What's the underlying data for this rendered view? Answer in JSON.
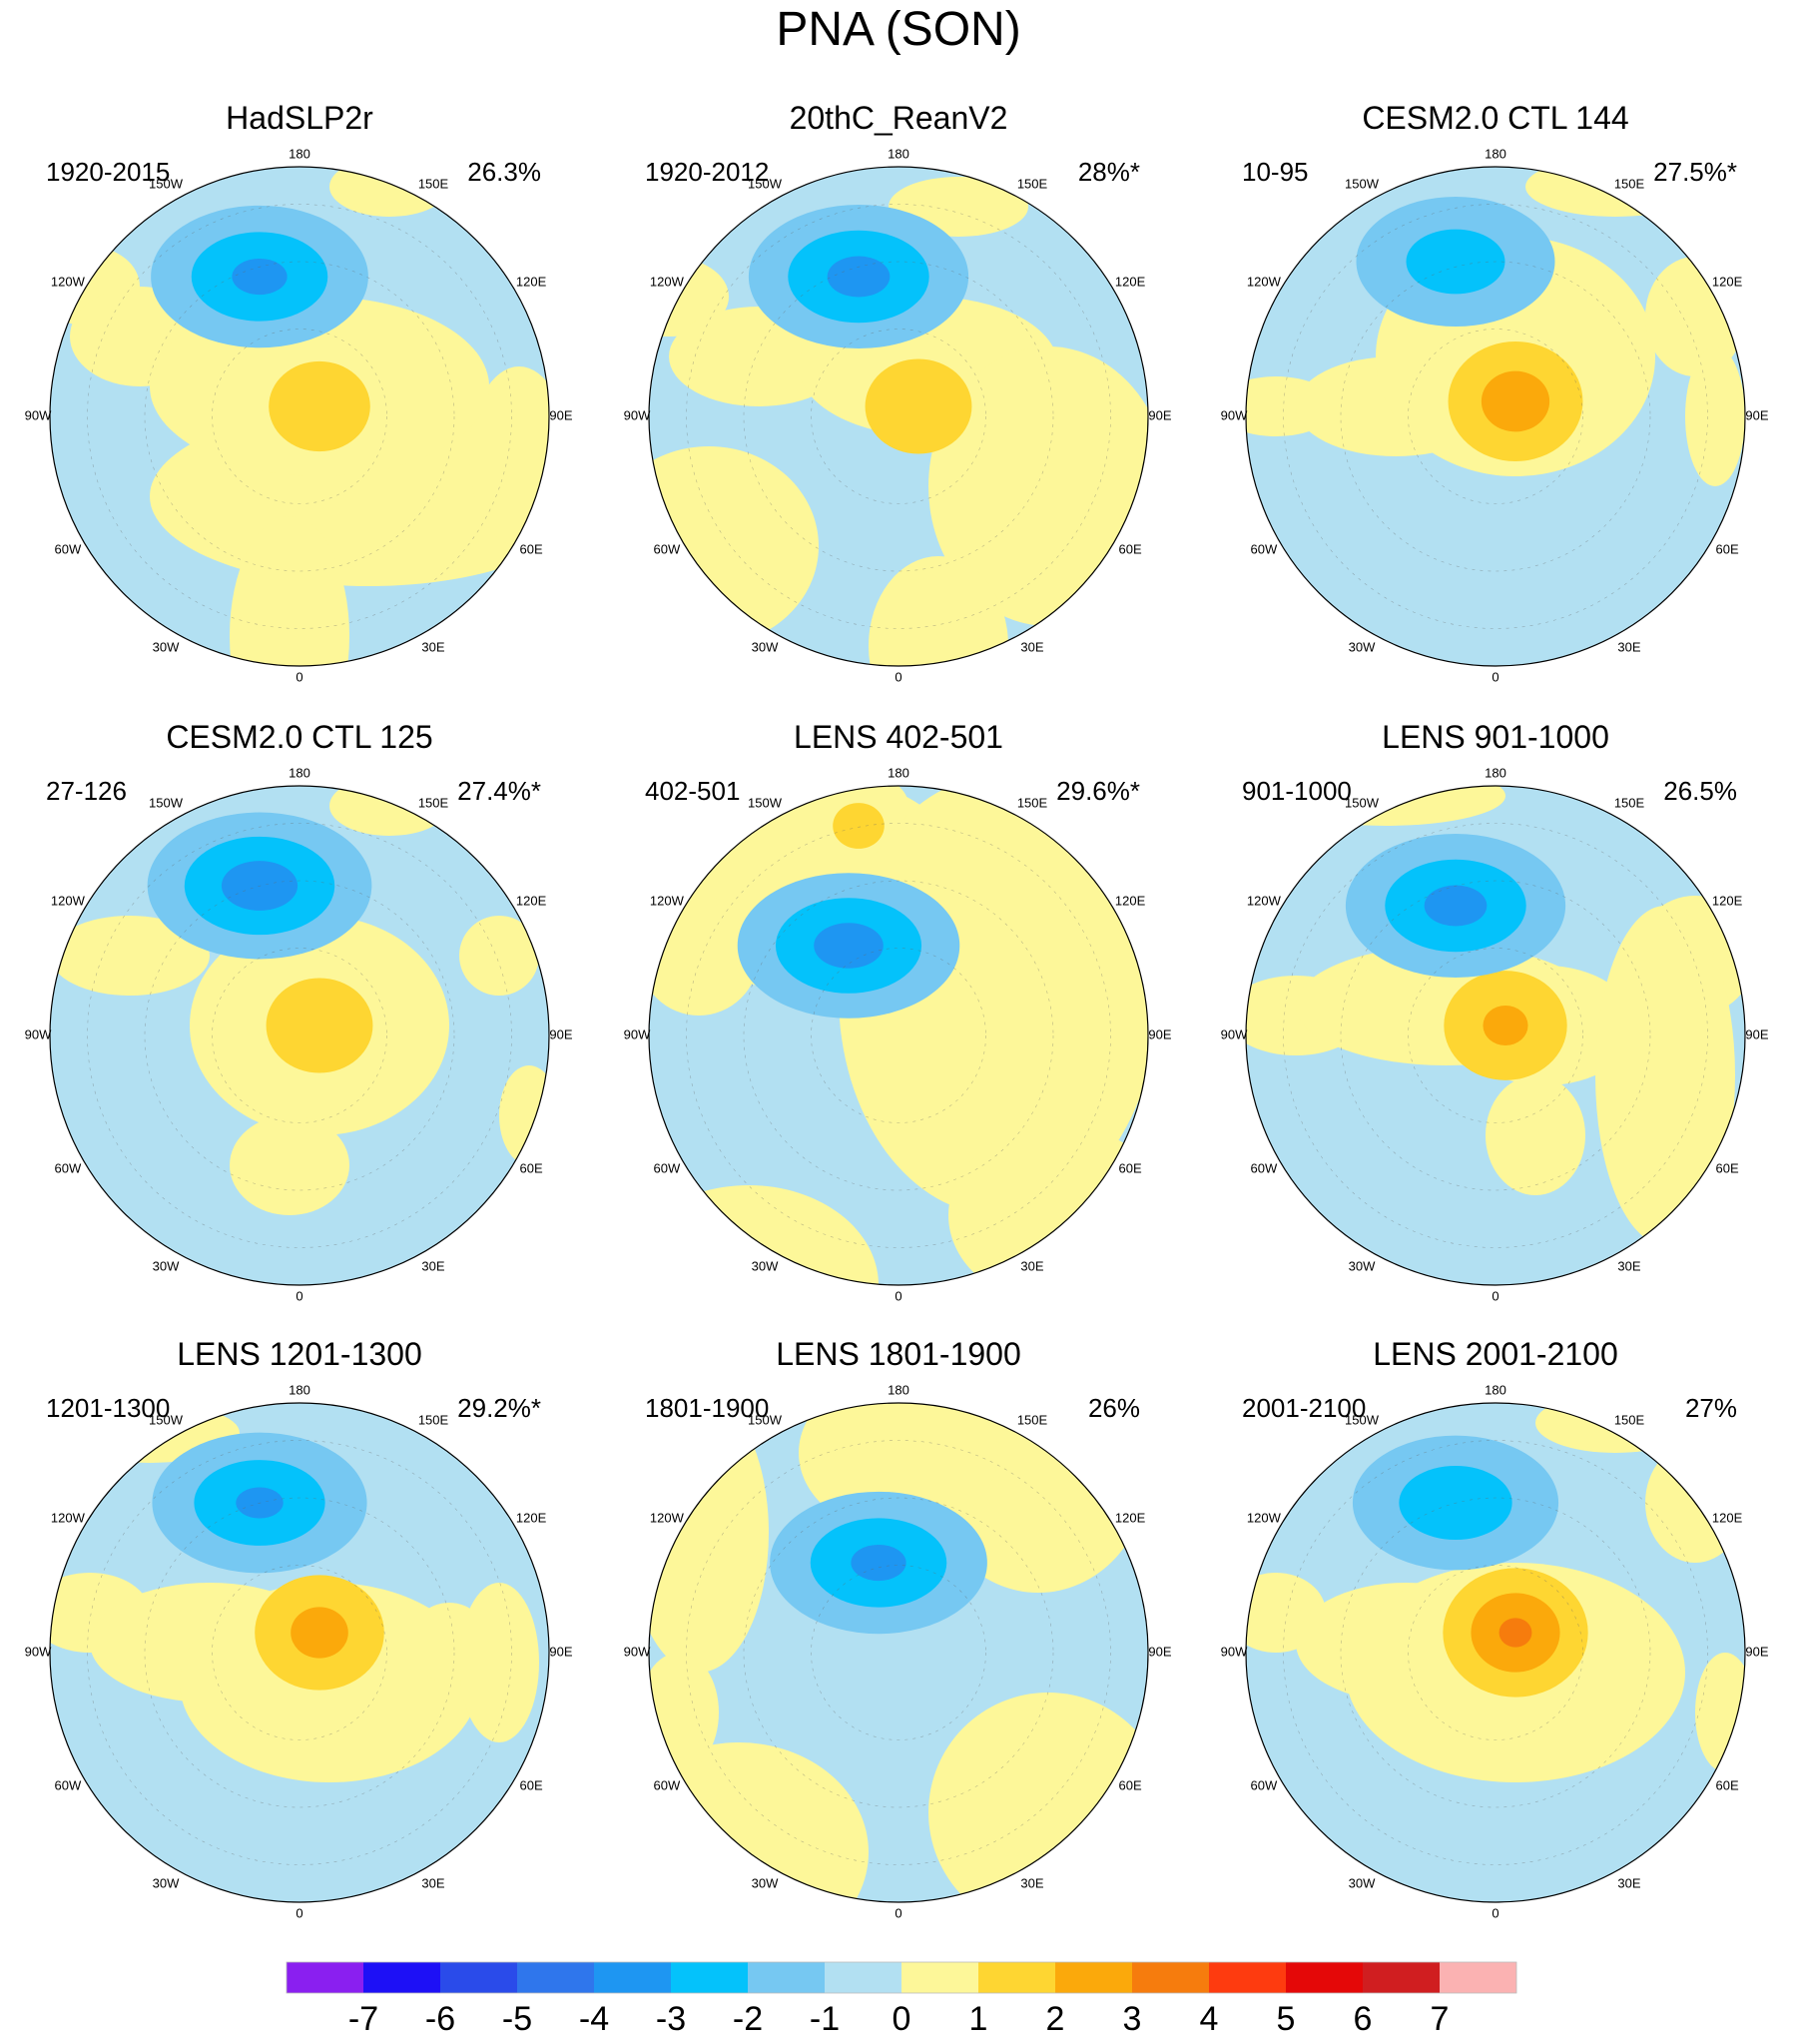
{
  "figure": {
    "title": "PNA (SON)"
  },
  "longitude_labels": [
    "180",
    "150E",
    "120E",
    "90E",
    "60E",
    "30E",
    "0",
    "30W",
    "60W",
    "90W",
    "120W",
    "150W"
  ],
  "panels": [
    {
      "title": "HadSLP2r",
      "period": "1920-2015",
      "variance": "26.3%",
      "low_center_mm": 4,
      "high_center_mm": 2,
      "low_max": -3.2,
      "high_max": 1.8
    },
    {
      "title": "20thC_ReanV2",
      "period": "1920-2012",
      "variance": "28%*",
      "low_center_mm": 3,
      "high_center_mm": 2,
      "low_max": -3.3,
      "high_max": 1.9
    },
    {
      "title": "CESM2.0 CTL 144",
      "period": "10-95",
      "variance": "27.5%*",
      "low_center_mm": 3,
      "high_center_mm": 4,
      "low_max": -2.6,
      "high_max": 2.7
    },
    {
      "title": "CESM2.0 CTL 125",
      "period": "27-126",
      "variance": "27.4%*",
      "low_center_mm": 4,
      "high_center_mm": 2,
      "low_max": -3.5,
      "high_max": 1.9
    },
    {
      "title": "LENS 402-501",
      "period": "402-501",
      "variance": "29.6%*",
      "low_center_mm": 3,
      "high_center_mm": 2,
      "low_max": -3.4,
      "high_max": 1.2
    },
    {
      "title": "LENS 901-1000",
      "period": "901-1000",
      "variance": "26.5%",
      "low_center_mm": 3,
      "high_center_mm": 2,
      "low_max": -3.3,
      "high_max": 2.3
    },
    {
      "title": "LENS 1201-1300",
      "period": "1201-1300",
      "variance": "29.2%*",
      "low_center_mm": 3,
      "high_center_mm": 2,
      "low_max": -3.1,
      "high_max": 2.5
    },
    {
      "title": "LENS 1801-1900",
      "period": "1801-1900",
      "variance": "26%",
      "low_center_mm": 3,
      "high_center_mm": 2,
      "low_max": -3.2,
      "high_max": 0.8
    },
    {
      "title": "LENS 2001-2100",
      "period": "2001-2100",
      "variance": "27%",
      "low_center_mm": 3,
      "high_center_mm": 4,
      "low_max": -2.8,
      "high_max": 3.2
    }
  ],
  "colorbar": {
    "labels": [
      "-7",
      "-6",
      "-5",
      "-4",
      "-3",
      "-2",
      "-1",
      "0",
      "1",
      "2",
      "3",
      "4",
      "5",
      "6",
      "7"
    ],
    "colors": [
      "#8a1ff0",
      "#1d10f6",
      "#2a4bea",
      "#2f76ec",
      "#1e96f2",
      "#04c2fb",
      "#76c8f2",
      "#b2e0f2",
      "#fdf799",
      "#fed632",
      "#fba90b",
      "#f67c0d",
      "#fe3b0f",
      "#e40808",
      "#d01e20",
      "#fbb2b2"
    ]
  }
}
